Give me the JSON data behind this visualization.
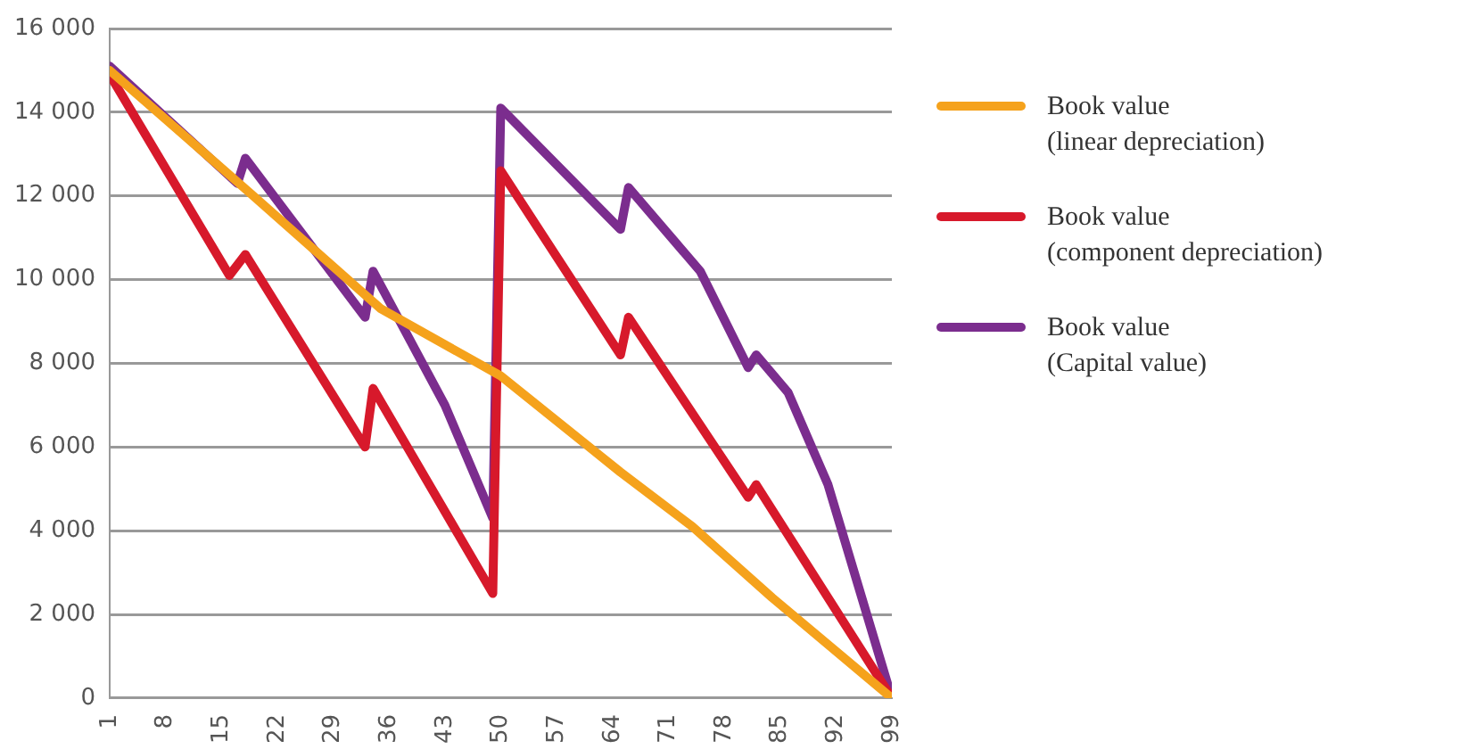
{
  "chart_data": {
    "type": "line",
    "xlim": [
      1,
      99
    ],
    "xticks": [
      1,
      8,
      15,
      22,
      29,
      36,
      43,
      50,
      57,
      64,
      71,
      78,
      85,
      92,
      99
    ],
    "ylim": [
      0,
      16000
    ],
    "yticks": [
      {
        "value": 0,
        "label": "0"
      },
      {
        "value": 2000,
        "label": "2 000"
      },
      {
        "value": 4000,
        "label": "4 000"
      },
      {
        "value": 6000,
        "label": "6 000"
      },
      {
        "value": 8000,
        "label": "8 000"
      },
      {
        "value": 10000,
        "label": "10 000"
      },
      {
        "value": 12000,
        "label": "12 000"
      },
      {
        "value": 14000,
        "label": "14 000"
      },
      {
        "value": 16000,
        "label": "16 000"
      }
    ],
    "grid": "y",
    "legend": "right",
    "marker": "none",
    "line_style": "solid",
    "series": [
      {
        "name": "Book value (linear depreciation)",
        "color": "#f5a21c",
        "x": [
          1,
          19,
          35,
          50,
          65,
          74,
          84,
          99
        ],
        "values": [
          15000,
          12000,
          9300,
          7700,
          5400,
          4100,
          2400,
          0
        ]
      },
      {
        "name": "Book value (component depreciation)",
        "color": "#d7192b",
        "x": [
          1,
          16,
          18,
          33,
          34,
          49,
          50,
          65,
          66,
          81,
          82,
          99
        ],
        "values": [
          14900,
          10100,
          10600,
          6000,
          7400,
          2500,
          12600,
          8200,
          9100,
          4800,
          5100,
          0
        ]
      },
      {
        "name": "Book value (Capital value)",
        "color": "#7b2d8e",
        "x": [
          1,
          17,
          18,
          33,
          34,
          43,
          49,
          50,
          65,
          66,
          75,
          81,
          82,
          86,
          91,
          99
        ],
        "values": [
          15100,
          12300,
          12900,
          9100,
          10200,
          7000,
          4300,
          14100,
          11200,
          12200,
          10200,
          7900,
          8200,
          7300,
          5100,
          0
        ]
      }
    ]
  }
}
